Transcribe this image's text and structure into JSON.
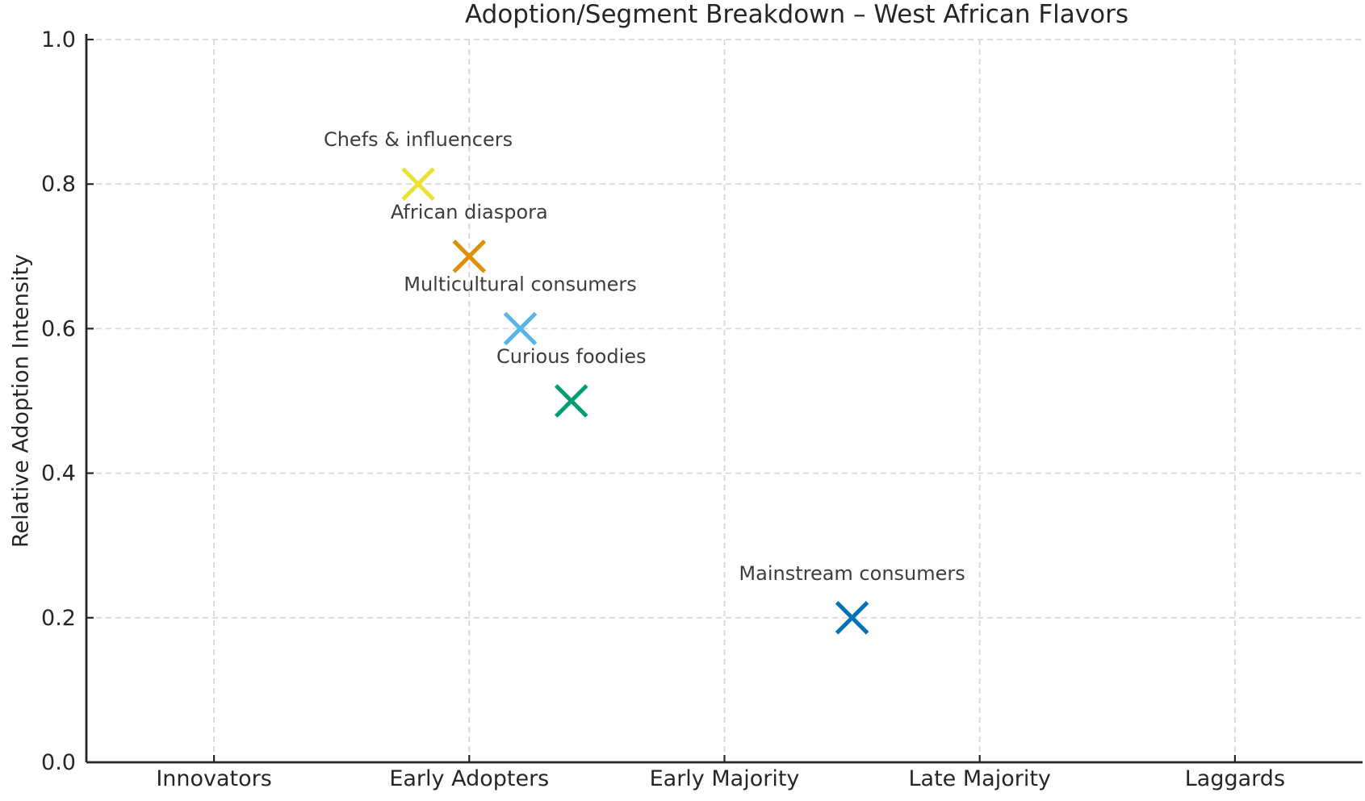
{
  "chart_data": {
    "type": "scatter",
    "title": "Adoption/Segment Breakdown – West African Flavors",
    "xlabel": "",
    "ylabel": "Relative Adoption Intensity",
    "categories": [
      "Innovators",
      "Early Adopters",
      "Early Majority",
      "Late Majority",
      "Laggards"
    ],
    "xlim": [
      -0.5,
      4.5
    ],
    "ylim": [
      0.0,
      1.0
    ],
    "yticks": [
      0.0,
      0.2,
      0.4,
      0.6,
      0.8,
      1.0
    ],
    "ytick_labels": [
      "0.0",
      "0.2",
      "0.4",
      "0.6",
      "0.8",
      "1.0"
    ],
    "grid": true,
    "grid_style": "dashed",
    "legend": "none",
    "marker": "x",
    "points": [
      {
        "label": "Chefs & influencers",
        "x": 0.8,
        "y": 0.8,
        "color": "#ECE133"
      },
      {
        "label": "African diaspora",
        "x": 1.0,
        "y": 0.7,
        "color": "#DE8F05"
      },
      {
        "label": "Multicultural consumers",
        "x": 1.2,
        "y": 0.6,
        "color": "#56B4E9"
      },
      {
        "label": "Curious foodies",
        "x": 1.4,
        "y": 0.5,
        "color": "#029E73"
      },
      {
        "label": "Mainstream consumers",
        "x": 2.5,
        "y": 0.2,
        "color": "#0173B2"
      }
    ],
    "colors": {
      "spine": "#262626",
      "grid": "#d8d8d8",
      "tick_label": "#262626",
      "annotation_text": "#3d3d3d",
      "background": "#ffffff"
    }
  }
}
